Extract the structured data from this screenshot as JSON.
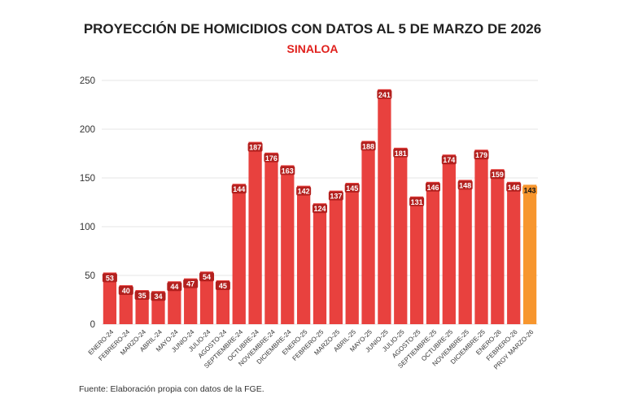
{
  "chart_data": {
    "type": "bar",
    "title": "PROYECCIÓN DE HOMICIDIOS CON DATOS AL 5 DE MARZO DE 2026",
    "subtitle": "SINALOA",
    "xlabel": "",
    "ylabel": "",
    "ylim": [
      0,
      250
    ],
    "yticks": [
      0,
      50,
      100,
      150,
      200,
      250
    ],
    "grid": true,
    "categories": [
      "ENERO-24",
      "FEBRERO-24",
      "MARZO-24",
      "ABRIL-24",
      "MAYO-24",
      "JUNIO-24",
      "JULIO-24",
      "AGOSTO-24",
      "SEPTIEMBRE-24",
      "OCTUBRE-24",
      "NOVIEMBRE-24",
      "DICIEMBRE-24",
      "ENERO-25",
      "FEBRERO-25",
      "MARZO-25",
      "ABRIL-25",
      "MAYO-25",
      "JUNIO-25",
      "JULIO-25",
      "AGOSTO-25",
      "SEPTIEMBRE-25",
      "OCTUBRE-25",
      "NOVIEMBRE-25",
      "DICIEMBRE-25",
      "ENERO-26",
      "FEBRERO-26",
      "PROY MARZO-26"
    ],
    "values": [
      53,
      40,
      35,
      34,
      44,
      47,
      54,
      45,
      144,
      187,
      176,
      163,
      142,
      124,
      137,
      145,
      188,
      241,
      181,
      131,
      146,
      174,
      148,
      179,
      159,
      146,
      143
    ],
    "colors": {
      "actual": "#e8413e",
      "projection": "#f7962e",
      "label_bg": "#b3201e"
    }
  },
  "source": "Fuente: Elaboración propia con datos de la FGE."
}
